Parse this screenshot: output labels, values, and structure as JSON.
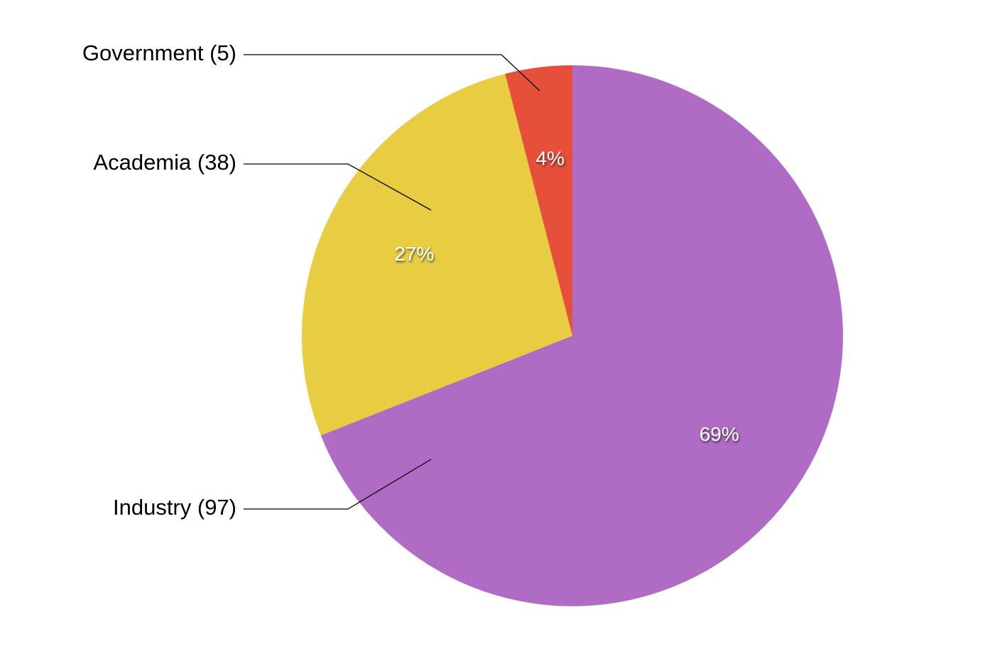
{
  "chart_data": {
    "type": "pie",
    "categories": [
      "Industry (97)",
      "Academia (38)",
      "Government (5)"
    ],
    "values": [
      69,
      27,
      4
    ],
    "value_labels": [
      "69%",
      "27%",
      "4%"
    ],
    "colors": [
      "#b06cc4",
      "#e8cd42",
      "#e6503a"
    ]
  }
}
